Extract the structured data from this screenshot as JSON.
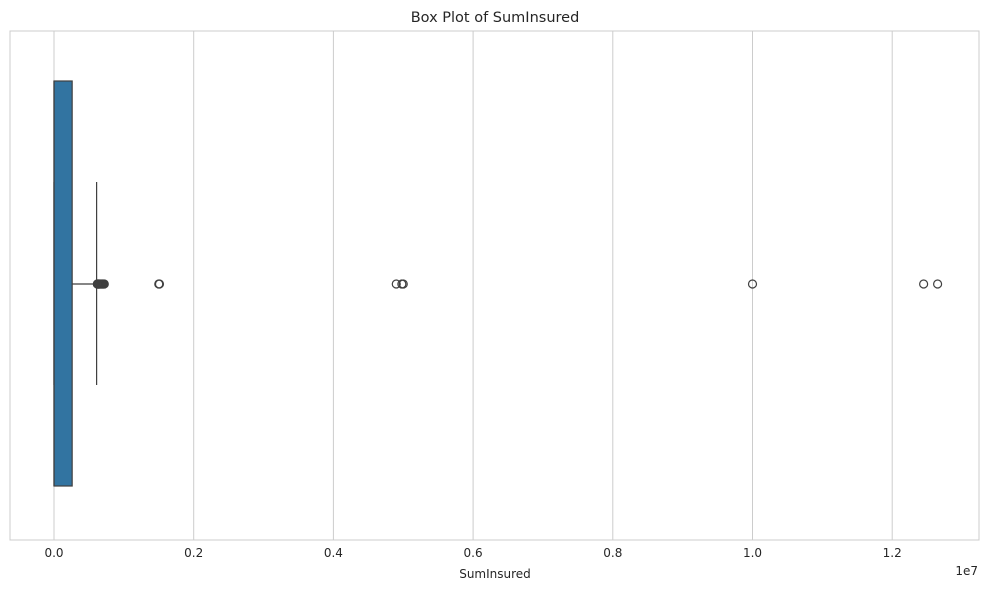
{
  "chart_data": {
    "type": "box",
    "title": "Box Plot of SumInsured",
    "xlabel": "SumInsured",
    "ylabel": "",
    "axis_offset_label": "1e7",
    "xlim": [
      -0.06,
      1.32
    ],
    "xticks": [
      0.0,
      0.2,
      0.4,
      0.6,
      0.8,
      1.0,
      1.2
    ],
    "tick_labels": [
      "0.0",
      "0.2",
      "0.4",
      "0.6",
      "0.8",
      "1.0",
      "1.2"
    ],
    "grid": true,
    "orientation": "horizontal",
    "box": {
      "whisker_low": 0.0,
      "q1": 0.0,
      "median": 0.0,
      "q3": 0.026,
      "whisker_high": 0.061,
      "color": "#3274a1"
    },
    "outliers": [
      0.062,
      0.0625,
      0.063,
      0.0635,
      0.064,
      0.0645,
      0.065,
      0.066,
      0.067,
      0.068,
      0.069,
      0.07,
      0.071,
      0.072,
      0.15,
      0.151,
      0.49,
      0.498,
      0.5,
      1.0,
      1.245,
      1.265
    ]
  },
  "colors": {
    "box_fill": "#3274a1",
    "line": "#3f3f3f",
    "grid": "#cccccc",
    "axes_edge": "#cccccc"
  }
}
